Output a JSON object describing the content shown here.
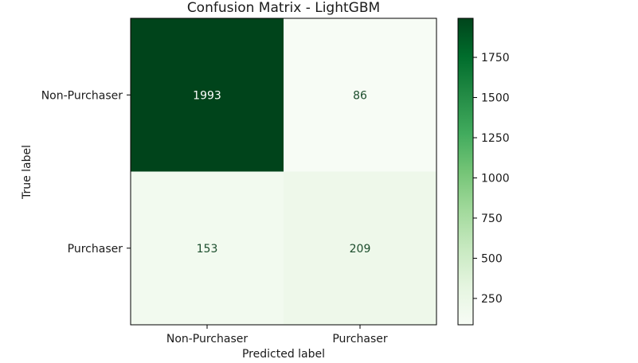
{
  "chart_data": {
    "type": "heatmap",
    "title": "Confusion Matrix - LightGBM",
    "xlabel": "Predicted label",
    "ylabel": "True label",
    "x_categories": [
      "Non-Purchaser",
      "Purchaser"
    ],
    "y_categories": [
      "Non-Purchaser",
      "Purchaser"
    ],
    "values": [
      [
        1993,
        86
      ],
      [
        153,
        209
      ]
    ],
    "colormap": "Greens",
    "colorbar": {
      "ticks": [
        250,
        500,
        750,
        1000,
        1250,
        1500,
        1750
      ],
      "range": [
        86,
        1993
      ]
    }
  }
}
